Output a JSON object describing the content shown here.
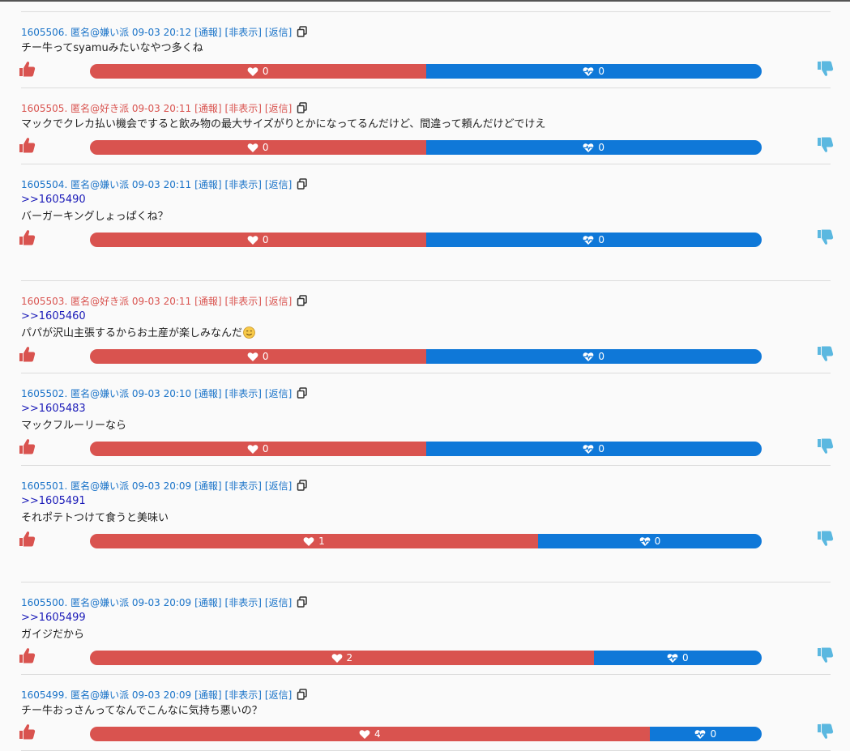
{
  "labels": {
    "report": "[通報]",
    "hide": "[非表示]",
    "reply": "[返信]"
  },
  "colors": {
    "hate": "#1a73c8",
    "like": "#d9534f",
    "bar_red": "#d9534f",
    "bar_blue": "#0f78d8",
    "thumb_up": "#d9534f",
    "thumb_down": "#5bb8e0",
    "anchor": "#1a1ab8"
  },
  "icons": [
    "copy-icon",
    "thumbs-up-icon",
    "thumbs-down-icon",
    "heart-icon",
    "heartbeat-icon",
    "smile-emoji-icon"
  ],
  "posts": [
    {
      "header": "1605506. 匿名@嫌い派 09-03 20:12",
      "faction": "hate",
      "anchor": "",
      "body": "チー牛ってsyamuみたいなやつ多くね",
      "likes": "0",
      "hearts": "0",
      "like_share": 0.5,
      "gap_before": false
    },
    {
      "header": "1605505. 匿名@好き派 09-03 20:11",
      "faction": "like",
      "anchor": "",
      "body": "マックでクレカ払い機会ですると飲み物の最大サイズがりとかになってるんだけど、間違って頼んだけどでけえ",
      "likes": "0",
      "hearts": "0",
      "like_share": 0.5,
      "gap_before": false
    },
    {
      "header": "1605504. 匿名@嫌い派 09-03 20:11",
      "faction": "hate",
      "anchor": ">>1605490",
      "body": "バーガーキングしょっぱくね？",
      "likes": "0",
      "hearts": "0",
      "like_share": 0.5,
      "gap_before": false
    },
    {
      "header": "1605503. 匿名@好き派 09-03 20:11",
      "faction": "like",
      "anchor": ">>1605460",
      "body": "パパが沢山主張するからお土産が楽しみなんだ",
      "emoji": true,
      "likes": "0",
      "hearts": "0",
      "like_share": 0.5,
      "gap_before": true
    },
    {
      "header": "1605502. 匿名@嫌い派 09-03 20:10",
      "faction": "hate",
      "anchor": ">>1605483",
      "body": "マックフルーリーなら",
      "likes": "0",
      "hearts": "0",
      "like_share": 0.5,
      "gap_before": false
    },
    {
      "header": "1605501. 匿名@嫌い派 09-03 20:09",
      "faction": "hate",
      "anchor": ">>1605491",
      "body": "それポテトつけて食うと美味い",
      "likes": "1",
      "hearts": "0",
      "like_share": 0.667,
      "gap_before": false
    },
    {
      "header": "1605500. 匿名@嫌い派 09-03 20:09",
      "faction": "hate",
      "anchor": ">>1605499",
      "body": "ガイジだから",
      "likes": "2",
      "hearts": "0",
      "like_share": 0.75,
      "gap_before": true
    },
    {
      "header": "1605499. 匿名@嫌い派 09-03 20:09",
      "faction": "hate",
      "anchor": "",
      "body": "チー牛おっさんってなんでこんなに気持ち悪いの？",
      "likes": "4",
      "hearts": "0",
      "like_share": 0.833,
      "gap_before": false
    }
  ]
}
